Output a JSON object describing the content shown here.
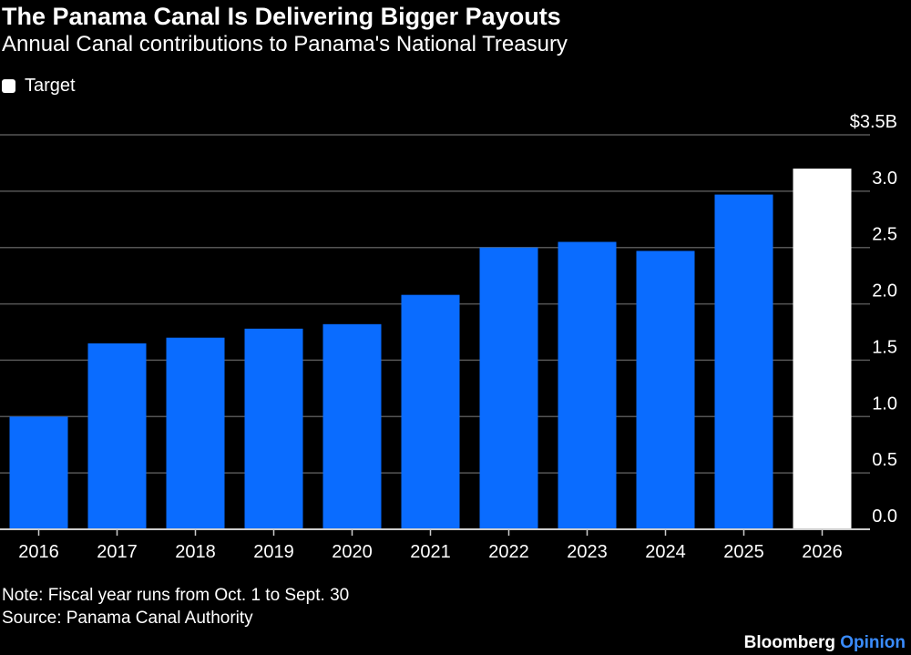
{
  "chart_data": {
    "type": "bar",
    "title": "The Panama Canal Is Delivering Bigger Payouts",
    "subtitle": "Annual Canal contributions to Panama's National Treasury",
    "legend": {
      "label": "Target",
      "color": "#ffffff",
      "placement": "top-left"
    },
    "categories": [
      "2016",
      "2017",
      "2018",
      "2019",
      "2020",
      "2021",
      "2022",
      "2023",
      "2024",
      "2025",
      "2026"
    ],
    "values": [
      1.0,
      1.65,
      1.7,
      1.78,
      1.82,
      2.08,
      2.5,
      2.55,
      2.47,
      2.97,
      3.2
    ],
    "target": [
      false,
      false,
      false,
      false,
      false,
      false,
      false,
      false,
      false,
      false,
      true
    ],
    "ylim": [
      0,
      3.5
    ],
    "yticks": [
      "0.0",
      "0.5",
      "1.0",
      "1.5",
      "2.0",
      "2.5",
      "3.0",
      "$3.5B"
    ],
    "ytick_values": [
      0,
      0.5,
      1.0,
      1.5,
      2.0,
      2.5,
      3.0,
      3.5
    ],
    "yaxis_side": "right",
    "grid": true,
    "colors": {
      "actual": "#0a6cff",
      "target": "#ffffff",
      "grid": "#555555",
      "background": "#000000"
    }
  },
  "footer": {
    "note": "Note: Fiscal year runs from Oct. 1 to Sept. 30",
    "source": "Source: Panama Canal Authority",
    "brand_main": "Bloomberg",
    "brand_accent": "Opinion"
  }
}
